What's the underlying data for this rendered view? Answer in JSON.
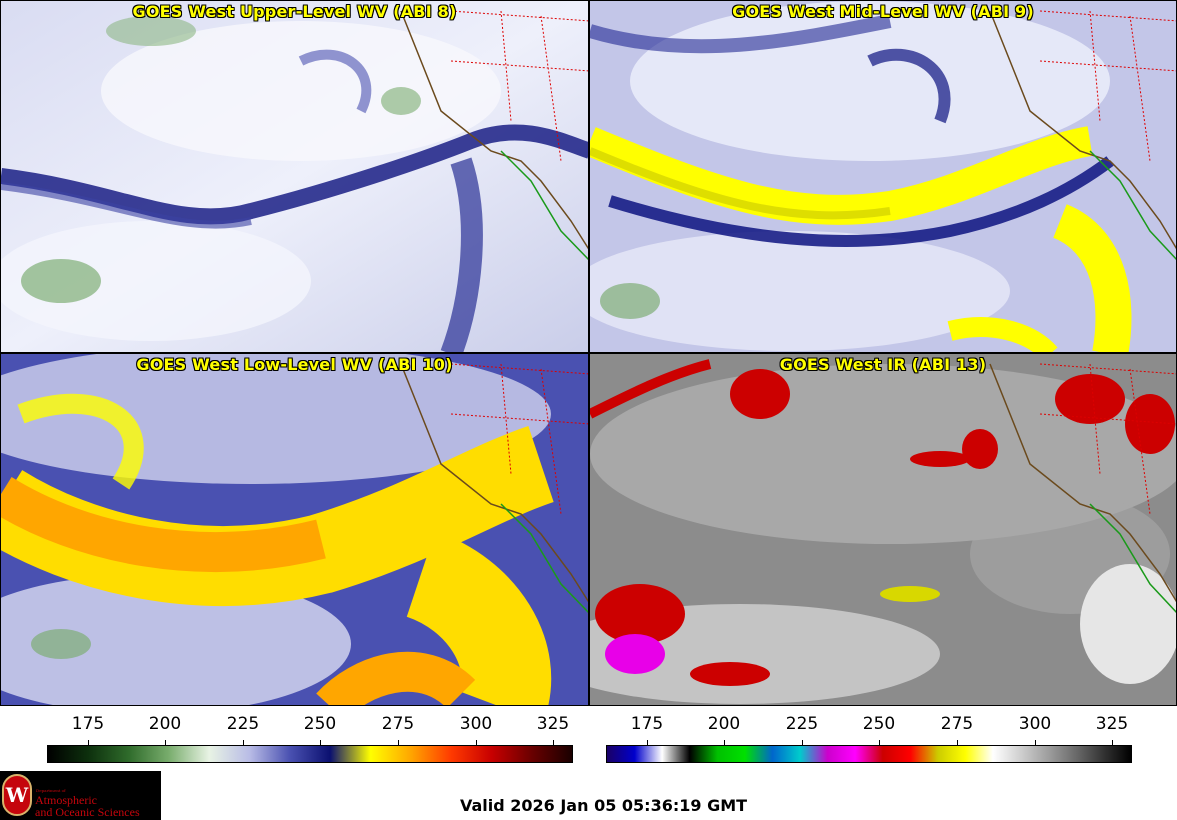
{
  "panels": [
    {
      "title": "GOES West Upper-Level WV (ABI 8)",
      "theme": "wv_upper"
    },
    {
      "title": "GOES West Mid-Level WV (ABI 9)",
      "theme": "wv_mid"
    },
    {
      "title": "GOES West Low-Level WV (ABI 10)",
      "theme": "wv_low"
    },
    {
      "title": "GOES West IR (ABI 13)",
      "theme": "ir"
    }
  ],
  "colorbars": [
    {
      "name": "water-vapor",
      "ticks": [
        "175",
        "200",
        "225",
        "250",
        "275",
        "300",
        "325"
      ],
      "colors": [
        "#000000",
        "#0d300d",
        "#2f6b2b",
        "#79ad6d",
        "#e8f3e4",
        "#b9bce6",
        "#4a51b1",
        "#0b1070",
        "#ffff00",
        "#ffa600",
        "#ff3a00",
        "#c80000",
        "#6a0000",
        "#1a0000"
      ]
    },
    {
      "name": "infrared",
      "ticks": [
        "175",
        "200",
        "225",
        "250",
        "275",
        "300",
        "325"
      ],
      "colors": [
        "#1a0066",
        "#0000cc",
        "#ffffff",
        "#000000",
        "#00c000",
        "#00e000",
        "#0066cc",
        "#00cccc",
        "#cc00cc",
        "#ff00ff",
        "#cc0000",
        "#ff0000",
        "#cccc00",
        "#ffff00",
        "#ffffff",
        "#cfcfcf",
        "#9e9e9e",
        "#6a6a6a",
        "#333333",
        "#000000"
      ]
    }
  ],
  "logo": {
    "dept_line": "Department of",
    "line1": "Atmospheric",
    "line2": "and Oceanic Sciences",
    "emblem": "W"
  },
  "valid_text": "Valid 2026 Jan 05 05:36:19 GMT"
}
